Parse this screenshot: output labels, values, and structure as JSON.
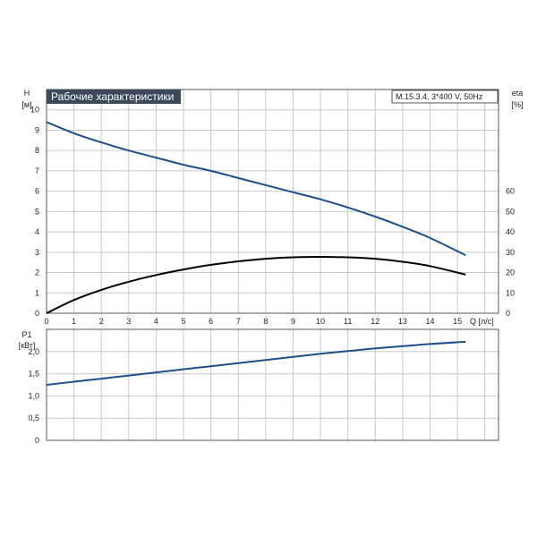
{
  "chart_data": [
    {
      "type": "line",
      "title": "Рабочие характеристики",
      "model_label": "M.15.3.4, 3*400 V, 50Hz",
      "y_label": "H",
      "y_unit": "[м]",
      "y2_label": "eta",
      "y2_unit": "[%]",
      "x_label": "Q [л/с]",
      "xlim": [
        0,
        16.5
      ],
      "ylim": [
        0,
        11
      ],
      "y2lim": [
        0,
        110
      ],
      "x_ticks": [
        "0",
        "1",
        "2",
        "3",
        "4",
        "5",
        "6",
        "7",
        "8",
        "9",
        "10",
        "11",
        "12",
        "13",
        "14",
        "15"
      ],
      "y_ticks": [
        "0",
        "1",
        "2",
        "3",
        "4",
        "5",
        "6",
        "7",
        "8",
        "9",
        "10"
      ],
      "y2_ticks": [
        "0",
        "10",
        "20",
        "30",
        "40",
        "50",
        "60"
      ],
      "grid": true,
      "series": [
        {
          "axis": "left",
          "color": "#1f4e8c",
          "x": [
            0,
            1,
            2,
            3,
            4,
            5,
            6,
            7,
            8,
            9,
            10,
            11,
            12,
            13,
            14,
            15.3
          ],
          "values": [
            9.4,
            8.85,
            8.4,
            8.0,
            7.65,
            7.3,
            7.0,
            6.65,
            6.3,
            5.95,
            5.6,
            5.2,
            4.75,
            4.25,
            3.7,
            2.85
          ]
        },
        {
          "axis": "right",
          "color": "#000000",
          "x": [
            0,
            1,
            2,
            3,
            4,
            5,
            6,
            7,
            8,
            9,
            10,
            11,
            12,
            13,
            14,
            15.3
          ],
          "values": [
            0,
            6.5,
            11.5,
            15.5,
            18.8,
            21.5,
            23.8,
            25.5,
            26.8,
            27.5,
            27.7,
            27.5,
            26.8,
            25.3,
            23.2,
            19.0
          ]
        }
      ]
    },
    {
      "type": "line",
      "y_label": "P1",
      "y_unit": "[кВт]",
      "xlim": [
        0,
        16.5
      ],
      "ylim": [
        0,
        2.5
      ],
      "y_ticks": [
        "0",
        "0,5",
        "1,0",
        "1,5",
        "2,0"
      ],
      "y_tick_values": [
        0,
        0.5,
        1.0,
        1.5,
        2.0
      ],
      "grid": true,
      "series": [
        {
          "axis": "left",
          "color": "#1f4e8c",
          "x": [
            0,
            1,
            2,
            3,
            4,
            5,
            6,
            7,
            8,
            9,
            10,
            11,
            12,
            13,
            14,
            15.3
          ],
          "values": [
            1.25,
            1.32,
            1.39,
            1.46,
            1.53,
            1.6,
            1.67,
            1.74,
            1.81,
            1.88,
            1.95,
            2.01,
            2.07,
            2.12,
            2.17,
            2.22
          ]
        }
      ]
    }
  ]
}
